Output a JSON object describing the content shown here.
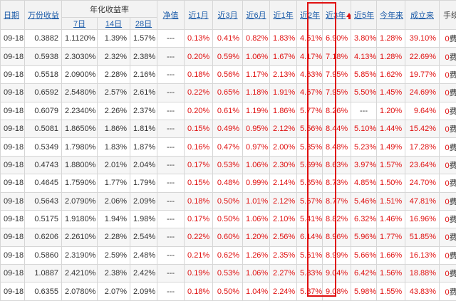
{
  "header": {
    "date": "日期",
    "wanfen": "万份收益",
    "annual": "年化收益率",
    "sub7": "7日",
    "sub14": "14日",
    "sub28": "28日",
    "nav": "净值",
    "m1": "近1月",
    "m3": "近3月",
    "m6": "近6月",
    "y1": "近1年",
    "y2": "近2年",
    "y3": "近3年",
    "y5": "近5年",
    "ytd": "今年来",
    "since": "成立来",
    "fee": "手续费"
  },
  "rows": [
    {
      "date": "09-18",
      "wanfen": "0.3882",
      "d7": "1.1120%",
      "d14": "1.39%",
      "d28": "1.57%",
      "nav": "---",
      "m1": "0.13%",
      "m3": "0.41%",
      "m6": "0.82%",
      "y1": "1.83%",
      "y2": "4.51%",
      "y3": "6.90%",
      "y5": "3.80%",
      "ytd": "1.28%",
      "since": "39.10%",
      "fee_num": "0",
      "fee_txt": "费率"
    },
    {
      "date": "09-18",
      "wanfen": "0.5938",
      "d7": "2.3030%",
      "d14": "2.32%",
      "d28": "2.38%",
      "nav": "---",
      "m1": "0.20%",
      "m3": "0.59%",
      "m6": "1.06%",
      "y1": "1.67%",
      "y2": "4.17%",
      "y3": "7.18%",
      "y5": "4.13%",
      "ytd": "1.28%",
      "since": "22.69%",
      "fee_num": "0",
      "fee_txt": "费率"
    },
    {
      "date": "09-18",
      "wanfen": "0.5518",
      "d7": "2.0900%",
      "d14": "2.28%",
      "d28": "2.16%",
      "nav": "---",
      "m1": "0.18%",
      "m3": "0.56%",
      "m6": "1.17%",
      "y1": "2.13%",
      "y2": "4.63%",
      "y3": "7.95%",
      "y5": "5.85%",
      "ytd": "1.62%",
      "since": "19.77%",
      "fee_num": "0",
      "fee_txt": "费率"
    },
    {
      "date": "09-18",
      "wanfen": "0.6592",
      "d7": "2.5480%",
      "d14": "2.57%",
      "d28": "2.61%",
      "nav": "---",
      "m1": "0.22%",
      "m3": "0.65%",
      "m6": "1.18%",
      "y1": "1.91%",
      "y2": "4.67%",
      "y3": "7.95%",
      "y5": "5.50%",
      "ytd": "1.45%",
      "since": "24.69%",
      "fee_num": "0",
      "fee_txt": "费率"
    },
    {
      "date": "09-18",
      "wanfen": "0.6079",
      "d7": "2.2340%",
      "d14": "2.26%",
      "d28": "2.37%",
      "nav": "---",
      "m1": "0.20%",
      "m3": "0.61%",
      "m6": "1.19%",
      "y1": "1.86%",
      "y2": "5.77%",
      "y3": "8.26%",
      "y5": "---",
      "ytd": "1.20%",
      "since": "9.64%",
      "fee_num": "0",
      "fee_txt": "费率"
    },
    {
      "date": "09-18",
      "wanfen": "0.5081",
      "d7": "1.8650%",
      "d14": "1.86%",
      "d28": "1.81%",
      "nav": "---",
      "m1": "0.15%",
      "m3": "0.49%",
      "m6": "0.95%",
      "y1": "2.12%",
      "y2": "5.56%",
      "y3": "8.44%",
      "y5": "5.10%",
      "ytd": "1.44%",
      "since": "15.42%",
      "fee_num": "0",
      "fee_txt": "费率"
    },
    {
      "date": "09-18",
      "wanfen": "0.5349",
      "d7": "1.7980%",
      "d14": "1.83%",
      "d28": "1.87%",
      "nav": "---",
      "m1": "0.16%",
      "m3": "0.47%",
      "m6": "0.97%",
      "y1": "2.00%",
      "y2": "5.35%",
      "y3": "8.48%",
      "y5": "5.23%",
      "ytd": "1.49%",
      "since": "17.28%",
      "fee_num": "0",
      "fee_txt": "费率"
    },
    {
      "date": "09-18",
      "wanfen": "0.4743",
      "d7": "1.8800%",
      "d14": "2.01%",
      "d28": "2.04%",
      "nav": "---",
      "m1": "0.17%",
      "m3": "0.53%",
      "m6": "1.06%",
      "y1": "2.30%",
      "y2": "5.69%",
      "y3": "8.63%",
      "y5": "3.97%",
      "ytd": "1.57%",
      "since": "23.64%",
      "fee_num": "0",
      "fee_txt": "费率"
    },
    {
      "date": "09-18",
      "wanfen": "0.4645",
      "d7": "1.7590%",
      "d14": "1.77%",
      "d28": "1.79%",
      "nav": "---",
      "m1": "0.15%",
      "m3": "0.48%",
      "m6": "0.99%",
      "y1": "2.14%",
      "y2": "5.65%",
      "y3": "8.73%",
      "y5": "4.85%",
      "ytd": "1.50%",
      "since": "24.70%",
      "fee_num": "0",
      "fee_txt": "费率"
    },
    {
      "date": "09-18",
      "wanfen": "0.5643",
      "d7": "2.0790%",
      "d14": "2.06%",
      "d28": "2.09%",
      "nav": "---",
      "m1": "0.18%",
      "m3": "0.50%",
      "m6": "1.01%",
      "y1": "2.12%",
      "y2": "5.67%",
      "y3": "8.77%",
      "y5": "5.46%",
      "ytd": "1.51%",
      "since": "47.81%",
      "fee_num": "0",
      "fee_txt": "费率"
    },
    {
      "date": "09-18",
      "wanfen": "0.5175",
      "d7": "1.9180%",
      "d14": "1.94%",
      "d28": "1.98%",
      "nav": "---",
      "m1": "0.17%",
      "m3": "0.50%",
      "m6": "1.06%",
      "y1": "2.10%",
      "y2": "5.41%",
      "y3": "8.82%",
      "y5": "6.32%",
      "ytd": "1.46%",
      "since": "16.96%",
      "fee_num": "0",
      "fee_txt": "费率"
    },
    {
      "date": "09-18",
      "wanfen": "0.6206",
      "d7": "2.2610%",
      "d14": "2.28%",
      "d28": "2.54%",
      "nav": "---",
      "m1": "0.22%",
      "m3": "0.60%",
      "m6": "1.20%",
      "y1": "2.56%",
      "y2": "6.14%",
      "y3": "8.96%",
      "y5": "5.96%",
      "ytd": "1.77%",
      "since": "51.85%",
      "fee_num": "0",
      "fee_txt": "费率"
    },
    {
      "date": "09-18",
      "wanfen": "0.5860",
      "d7": "2.3190%",
      "d14": "2.59%",
      "d28": "2.48%",
      "nav": "---",
      "m1": "0.21%",
      "m3": "0.62%",
      "m6": "1.26%",
      "y1": "2.35%",
      "y2": "5.61%",
      "y3": "8.99%",
      "y5": "5.66%",
      "ytd": "1.66%",
      "since": "16.13%",
      "fee_num": "0",
      "fee_txt": "费率"
    },
    {
      "date": "09-18",
      "wanfen": "1.0887",
      "d7": "2.4210%",
      "d14": "2.38%",
      "d28": "2.42%",
      "nav": "---",
      "m1": "0.19%",
      "m3": "0.53%",
      "m6": "1.06%",
      "y1": "2.27%",
      "y2": "5.83%",
      "y3": "9.04%",
      "y5": "6.42%",
      "ytd": "1.56%",
      "since": "18.88%",
      "fee_num": "0",
      "fee_txt": "费率"
    },
    {
      "date": "09-18",
      "wanfen": "0.6355",
      "d7": "2.0780%",
      "d14": "2.07%",
      "d28": "2.09%",
      "nav": "---",
      "m1": "0.18%",
      "m3": "0.50%",
      "m6": "1.04%",
      "y1": "2.24%",
      "y2": "5.87%",
      "y3": "9.08%",
      "y5": "5.98%",
      "ytd": "1.55%",
      "since": "43.83%",
      "fee_num": "0",
      "fee_txt": "费率"
    }
  ],
  "colors": {
    "accent_red": "#e01010",
    "link_blue": "#1a5aa8",
    "header_bg": "#f3f3f3",
    "sorted_arrow": "up-arrow-icon"
  }
}
